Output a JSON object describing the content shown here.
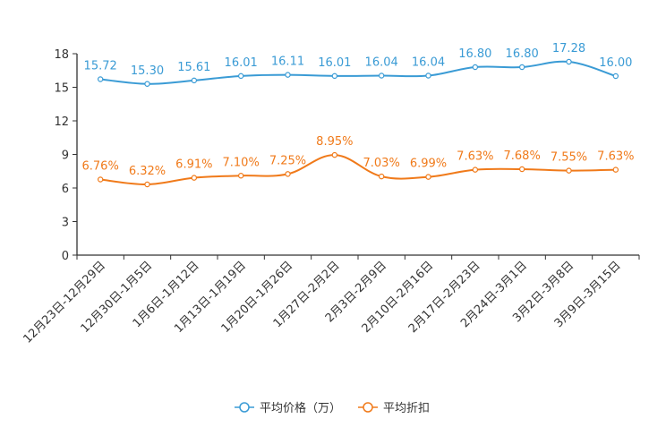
{
  "chart_data": {
    "type": "line",
    "title": "",
    "xlabel": "",
    "ylabel": "",
    "ylim": [
      0,
      18
    ],
    "yticks": [
      0,
      3,
      6,
      9,
      12,
      15,
      18
    ],
    "grid": false,
    "legend_position": "bottom-center",
    "categories": [
      "12月23日-12月29日",
      "12月30日-1月5日",
      "1月6日-1月12日",
      "1月13日-1月19日",
      "1月20日-1月26日",
      "1月27日-2月2日",
      "2月3日-2月9日",
      "2月10日-2月16日",
      "2月17日-2月23日",
      "2月24日-3月1日",
      "3月2日-3月8日",
      "3月9日-3月15日"
    ],
    "series": [
      {
        "name": "平均价格（万）",
        "color": "#3a9bd5",
        "values": [
          15.72,
          15.3,
          15.61,
          16.01,
          16.11,
          16.01,
          16.04,
          16.04,
          16.8,
          16.8,
          17.28,
          16.0
        ],
        "labels": [
          "15.72",
          "15.30",
          "15.61",
          "16.01",
          "16.11",
          "16.01",
          "16.04",
          "16.04",
          "16.80",
          "16.80",
          "17.28",
          "16.00"
        ]
      },
      {
        "name": "平均折扣",
        "color": "#f07a1a",
        "values": [
          6.76,
          6.32,
          6.91,
          7.1,
          7.25,
          8.95,
          7.03,
          6.99,
          7.63,
          7.68,
          7.55,
          7.63
        ],
        "labels": [
          "6.76%",
          "6.32%",
          "6.91%",
          "7.10%",
          "7.25%",
          "8.95%",
          "7.03%",
          "6.99%",
          "7.63%",
          "7.68%",
          "7.55%",
          "7.63%"
        ]
      }
    ]
  }
}
